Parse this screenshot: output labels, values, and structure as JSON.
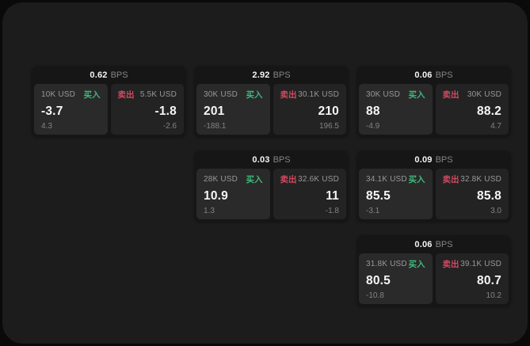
{
  "labels": {
    "bps": "BPS",
    "buy": "买入",
    "sell": "卖出"
  },
  "colors": {
    "buy_green": "#3fb77c",
    "sell_red": "#d04a60",
    "panel_bg": "#1c1c1c",
    "card_bg": "#161616",
    "buy_panel_bg": "#2a2a2a",
    "sell_panel_bg": "#232323"
  },
  "cards": [
    {
      "spread": "0.62",
      "buy": {
        "size": "10K USD",
        "price": "-3.7",
        "change": "4.3"
      },
      "sell": {
        "size": "5.5K USD",
        "price": "-1.8",
        "change": "-2.6"
      }
    },
    {
      "spread": "2.92",
      "buy": {
        "size": "30K USD",
        "price": "201",
        "change": "-188.1"
      },
      "sell": {
        "size": "30.1K USD",
        "price": "210",
        "change": "196.5"
      }
    },
    {
      "spread": "0.06",
      "buy": {
        "size": "30K USD",
        "price": "88",
        "change": "-4.9"
      },
      "sell": {
        "size": "30K USD",
        "price": "88.2",
        "change": "4.7"
      }
    },
    {
      "spread": "0.03",
      "buy": {
        "size": "28K USD",
        "price": "10.9",
        "change": "1.3"
      },
      "sell": {
        "size": "32.6K USD",
        "price": "11",
        "change": "-1.8"
      }
    },
    {
      "spread": "0.09",
      "buy": {
        "size": "34.1K USD",
        "price": "85.5",
        "change": "-3.1"
      },
      "sell": {
        "size": "32.8K USD",
        "price": "85.8",
        "change": "3.0"
      }
    },
    {
      "spread": "0.06",
      "buy": {
        "size": "31.8K USD",
        "price": "80.5",
        "change": "-10.8"
      },
      "sell": {
        "size": "39.1K USD",
        "price": "80.7",
        "change": "10.2"
      }
    }
  ]
}
